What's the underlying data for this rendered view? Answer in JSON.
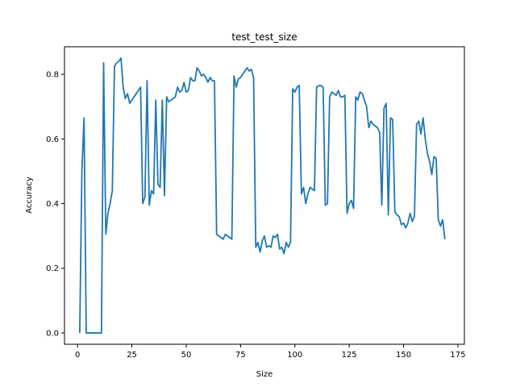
{
  "chart_data": {
    "type": "line",
    "title": "test_test_size",
    "xlabel": "Size",
    "ylabel": "Accuracy",
    "xlim": [
      -6,
      178
    ],
    "ylim": [
      -0.035,
      0.885
    ],
    "xticks": [
      0,
      25,
      50,
      75,
      100,
      125,
      150,
      175
    ],
    "yticks": [
      0.0,
      0.2,
      0.4,
      0.6,
      0.8
    ],
    "ytick_labels": [
      "0.0",
      "0.2",
      "0.4",
      "0.6",
      "0.8"
    ],
    "grid": false,
    "series": [
      {
        "color": "#1f77b4",
        "x": [
          1,
          2,
          3,
          4,
          5,
          6,
          7,
          8,
          9,
          10,
          11,
          12,
          13,
          14,
          15,
          16,
          17,
          18,
          19,
          20,
          21,
          22,
          23,
          24,
          25,
          26,
          27,
          28,
          29,
          30,
          31,
          32,
          33,
          34,
          35,
          36,
          37,
          38,
          39,
          40,
          41,
          42,
          43,
          44,
          45,
          46,
          47,
          48,
          49,
          50,
          51,
          52,
          53,
          54,
          55,
          56,
          57,
          58,
          59,
          60,
          61,
          62,
          63,
          64,
          65,
          66,
          67,
          68,
          69,
          70,
          71,
          72,
          73,
          74,
          75,
          76,
          77,
          78,
          79,
          80,
          81,
          82,
          83,
          84,
          85,
          86,
          87,
          88,
          89,
          90,
          91,
          92,
          93,
          94,
          95,
          96,
          97,
          98,
          99,
          100,
          101,
          102,
          103,
          104,
          105,
          106,
          107,
          108,
          109,
          110,
          111,
          112,
          113,
          114,
          115,
          116,
          117,
          118,
          119,
          120,
          121,
          122,
          123,
          124,
          125,
          126,
          127,
          128,
          129,
          130,
          131,
          132,
          133,
          134,
          135,
          136,
          137,
          138,
          139,
          140,
          141,
          142,
          143,
          144,
          145,
          146,
          147,
          148,
          149,
          150,
          151,
          152,
          153,
          154,
          155,
          156,
          157,
          158,
          159,
          160,
          161,
          162,
          163,
          164,
          165,
          166,
          167,
          168,
          169
        ],
        "y": [
          0.0,
          0.5,
          0.665,
          0.0,
          0.0,
          0.0,
          0.0,
          0.0,
          0.0,
          0.0,
          0.0,
          0.835,
          0.305,
          0.37,
          0.4,
          0.44,
          0.825,
          0.835,
          0.84,
          0.85,
          0.76,
          0.725,
          0.74,
          0.71,
          0.72,
          0.73,
          0.74,
          0.75,
          0.76,
          0.4,
          0.42,
          0.78,
          0.395,
          0.44,
          0.43,
          0.72,
          0.46,
          0.45,
          0.72,
          0.425,
          0.73,
          0.715,
          0.72,
          0.725,
          0.73,
          0.76,
          0.745,
          0.75,
          0.775,
          0.745,
          0.75,
          0.79,
          0.78,
          0.78,
          0.82,
          0.81,
          0.795,
          0.8,
          0.79,
          0.775,
          0.79,
          0.78,
          0.78,
          0.305,
          0.3,
          0.295,
          0.29,
          0.305,
          0.3,
          0.295,
          0.29,
          0.795,
          0.76,
          0.785,
          0.79,
          0.8,
          0.81,
          0.82,
          0.81,
          0.815,
          0.79,
          0.265,
          0.28,
          0.25,
          0.285,
          0.3,
          0.265,
          0.27,
          0.265,
          0.3,
          0.295,
          0.305,
          0.26,
          0.265,
          0.245,
          0.28,
          0.265,
          0.28,
          0.755,
          0.745,
          0.76,
          0.765,
          0.43,
          0.45,
          0.4,
          0.43,
          0.45,
          0.445,
          0.44,
          0.76,
          0.765,
          0.765,
          0.76,
          0.395,
          0.4,
          0.73,
          0.745,
          0.74,
          0.735,
          0.75,
          0.73,
          0.73,
          0.735,
          0.37,
          0.4,
          0.41,
          0.385,
          0.73,
          0.72,
          0.745,
          0.74,
          0.72,
          0.7,
          0.635,
          0.655,
          0.645,
          0.64,
          0.635,
          0.62,
          0.395,
          0.695,
          0.71,
          0.365,
          0.665,
          0.66,
          0.375,
          0.365,
          0.36,
          0.335,
          0.34,
          0.325,
          0.34,
          0.37,
          0.345,
          0.36,
          0.645,
          0.655,
          0.615,
          0.665,
          0.6,
          0.555,
          0.53,
          0.49,
          0.545,
          0.54,
          0.35,
          0.33,
          0.35,
          0.29
        ]
      }
    ]
  }
}
